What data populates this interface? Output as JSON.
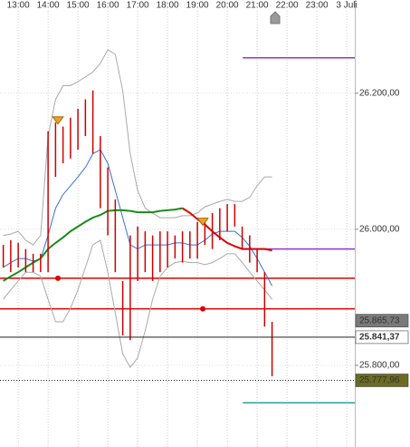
{
  "chart_data": {
    "type": "ohlc",
    "xlim": [
      12.39,
      24.27
    ],
    "ylim": [
      25680,
      26337
    ],
    "xticks": [
      {
        "value": 13,
        "label": "13:00"
      },
      {
        "value": 14,
        "label": "14:00"
      },
      {
        "value": 15,
        "label": "15:00"
      },
      {
        "value": 16,
        "label": "16:00"
      },
      {
        "value": 17,
        "label": "17:00"
      },
      {
        "value": 18,
        "label": "18:00"
      },
      {
        "value": 19,
        "label": "19:00"
      },
      {
        "value": 20,
        "label": "20:00"
      },
      {
        "value": 21,
        "label": "21:00"
      },
      {
        "value": 22,
        "label": "22:00"
      },
      {
        "value": 23,
        "label": "23:00"
      },
      {
        "value": 24,
        "label": "3 Juli"
      }
    ],
    "yticks": [
      {
        "value": 26200,
        "label": "26.200,00"
      },
      {
        "value": 26000,
        "label": "26.000,00"
      },
      {
        "value": 25800,
        "label": "25.800,00"
      }
    ],
    "grid": true,
    "bar_color": "#cc0000",
    "x": [
      12.5,
      12.75,
      13.0,
      13.25,
      13.5,
      13.75,
      14.0,
      14.25,
      14.5,
      14.75,
      15.0,
      15.25,
      15.5,
      15.75,
      16.0,
      16.25,
      16.5,
      16.75,
      17.0,
      17.25,
      17.5,
      17.75,
      18.0,
      18.25,
      18.5,
      18.75,
      19.0,
      19.25,
      19.5,
      19.75,
      20.0,
      20.25,
      20.5,
      20.75,
      21.0,
      21.25,
      21.5
    ],
    "high": [
      25977,
      25984,
      25980,
      25971,
      25964,
      25964,
      26144,
      26157,
      26151,
      26164,
      26177,
      26191,
      26204,
      26137,
      26091,
      26044,
      25924,
      25991,
      26004,
      25997,
      25991,
      25997,
      25997,
      25991,
      25997,
      25997,
      26011,
      26017,
      26024,
      26031,
      26037,
      26037,
      26004,
      25991,
      25971,
      25937,
      25864
    ],
    "low": [
      25944,
      25937,
      25944,
      25937,
      25937,
      25937,
      25937,
      26077,
      26097,
      26104,
      26117,
      26137,
      26111,
      26031,
      25991,
      25937,
      25844,
      25837,
      25924,
      25937,
      25924,
      25937,
      25944,
      25957,
      25951,
      25957,
      25957,
      25977,
      25971,
      25984,
      25997,
      26004,
      25971,
      25951,
      25937,
      25857,
      25784
    ],
    "series": [
      {
        "color": "#aaaaaa",
        "values": [
          25991,
          25993,
          25997,
          25984,
          25977,
          25991,
          26137,
          26191,
          26211,
          26211,
          26217,
          26224,
          26231,
          26244,
          26264,
          26257,
          26204,
          26111,
          26057,
          26031,
          26024,
          26017,
          26017,
          26017,
          26020,
          26020,
          26024,
          26033,
          26037,
          26041,
          26044,
          26041,
          26041,
          26047,
          26064,
          26077,
          26077
        ]
      },
      {
        "color": "#aaaaaa",
        "values": [
          25897,
          25911,
          25924,
          25937,
          25937,
          25931,
          25897,
          25864,
          25864,
          25884,
          25911,
          25944,
          25977,
          25984,
          25937,
          25877,
          25817,
          25797,
          25811,
          25851,
          25897,
          25931,
          25944,
          25951,
          25953,
          25951,
          25951,
          25948,
          25951,
          25957,
          25964,
          25964,
          25951,
          25937,
          25924,
          25911,
          25897
        ]
      },
      {
        "color": "#3a6fd8",
        "values": [
          25944,
          25951,
          25957,
          25957,
          25953,
          25957,
          25991,
          26031,
          26051,
          26064,
          26077,
          26091,
          26111,
          26117,
          26097,
          26057,
          26017,
          25977,
          25971,
          25977,
          25977,
          25977,
          25977,
          25980,
          25980,
          25977,
          25977,
          25984,
          25993,
          25997,
          25997,
          25997,
          25988,
          25975,
          25957,
          25937,
          25917
        ]
      },
      {
        "color": "#1a8c1a",
        "values": [
          25924,
          25931,
          25937,
          25944,
          25951,
          25957,
          25971,
          25980,
          25988,
          25997,
          26004,
          26011,
          26017,
          26021,
          26027,
          26028,
          26028,
          26027,
          26025,
          26025,
          26025,
          26027,
          26028,
          26029,
          26031,
          null,
          null,
          null,
          null,
          null,
          null,
          null,
          null,
          null,
          null,
          null,
          null
        ]
      },
      {
        "color": "#dd0000",
        "values": [
          null,
          null,
          null,
          null,
          null,
          null,
          null,
          null,
          null,
          null,
          null,
          null,
          null,
          null,
          null,
          null,
          null,
          null,
          null,
          null,
          null,
          null,
          null,
          null,
          26031,
          26024,
          26015,
          26007,
          25997,
          25988,
          25980,
          25975,
          25971,
          25971,
          25971,
          25971,
          25969
        ]
      }
    ],
    "signals": [
      {
        "shape": "triangle",
        "color": "#f0a020",
        "x": [
          14.33,
          19.18
        ],
        "values": [
          26160,
          26011
        ]
      },
      {
        "shape": "dot",
        "color": "#dd0000",
        "x": [
          14.33,
          19.18
        ],
        "values": [
          25928,
          25883
        ]
      }
    ],
    "levels": [
      {
        "value": 26252,
        "color": "#9933cc",
        "x_start": 20.52
      },
      {
        "value": 25971,
        "color": "#9933cc",
        "x_start": 20.52
      },
      {
        "value": 25928,
        "color": "#dd0000"
      },
      {
        "value": 25883,
        "color": "#dd0000"
      },
      {
        "value": 25745,
        "color": "#2aa198",
        "x_start": 20.52
      }
    ],
    "price_labels": [
      {
        "value": 25865.73,
        "label": "25.865,73",
        "color": "#7a7a7a",
        "text_color": "#ffffff"
      },
      {
        "value": 25841.37,
        "label": "25.841,37",
        "color": "#ffffff",
        "text_color": "#000000",
        "line": "solid"
      },
      {
        "value": 25777.96,
        "label": "25.777,96",
        "color": "#6b6b22",
        "text_color": "#ffffff",
        "line": "dotted"
      }
    ]
  }
}
